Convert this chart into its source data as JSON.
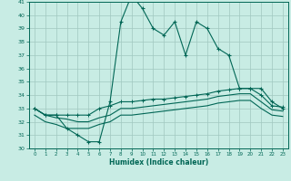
{
  "xlabel": "Humidex (Indice chaleur)",
  "bg_color": "#c8ece4",
  "grid_color": "#a0c8c0",
  "line_color": "#006655",
  "xlim": [
    -0.5,
    23.5
  ],
  "ylim": [
    30,
    41
  ],
  "xticks": [
    0,
    1,
    2,
    3,
    4,
    5,
    6,
    7,
    8,
    9,
    10,
    11,
    12,
    13,
    14,
    15,
    16,
    17,
    18,
    19,
    20,
    21,
    22,
    23
  ],
  "yticks": [
    30,
    31,
    32,
    33,
    34,
    35,
    36,
    37,
    38,
    39,
    40,
    41
  ],
  "series1_x": [
    0,
    1,
    2,
    3,
    4,
    5,
    6,
    7,
    8,
    9,
    10,
    11,
    12,
    13,
    14,
    15,
    16,
    17,
    18,
    19,
    20,
    21,
    22,
    23
  ],
  "series1_y": [
    33,
    32.5,
    32.5,
    31.5,
    31.0,
    30.5,
    30.5,
    33.5,
    39.5,
    41.5,
    40.5,
    39.0,
    38.5,
    39.5,
    37.0,
    39.5,
    39.0,
    37.5,
    37.0,
    34.5,
    34.5,
    34.5,
    33.5,
    33.0
  ],
  "series2_x": [
    0,
    1,
    2,
    3,
    4,
    5,
    6,
    7,
    8,
    9,
    10,
    11,
    12,
    13,
    14,
    15,
    16,
    17,
    18,
    19,
    20,
    21,
    22,
    23
  ],
  "series2_y": [
    33.0,
    32.5,
    32.5,
    32.5,
    32.5,
    32.5,
    33.0,
    33.2,
    33.5,
    33.5,
    33.6,
    33.7,
    33.7,
    33.8,
    33.9,
    34.0,
    34.1,
    34.3,
    34.4,
    34.5,
    34.5,
    34.0,
    33.2,
    33.1
  ],
  "series3_x": [
    0,
    1,
    2,
    3,
    4,
    5,
    6,
    7,
    8,
    9,
    10,
    11,
    12,
    13,
    14,
    15,
    16,
    17,
    18,
    19,
    20,
    21,
    22,
    23
  ],
  "series3_y": [
    33.0,
    32.5,
    32.3,
    32.2,
    32.0,
    32.0,
    32.3,
    32.5,
    33.0,
    33.0,
    33.1,
    33.2,
    33.3,
    33.4,
    33.5,
    33.6,
    33.7,
    33.9,
    34.0,
    34.1,
    34.1,
    33.5,
    32.9,
    32.8
  ],
  "series4_x": [
    0,
    1,
    2,
    3,
    4,
    5,
    6,
    7,
    8,
    9,
    10,
    11,
    12,
    13,
    14,
    15,
    16,
    17,
    18,
    19,
    20,
    21,
    22,
    23
  ],
  "series4_y": [
    32.5,
    32.0,
    31.8,
    31.5,
    31.5,
    31.5,
    31.8,
    32.0,
    32.5,
    32.5,
    32.6,
    32.7,
    32.8,
    32.9,
    33.0,
    33.1,
    33.2,
    33.4,
    33.5,
    33.6,
    33.6,
    33.0,
    32.5,
    32.4
  ]
}
